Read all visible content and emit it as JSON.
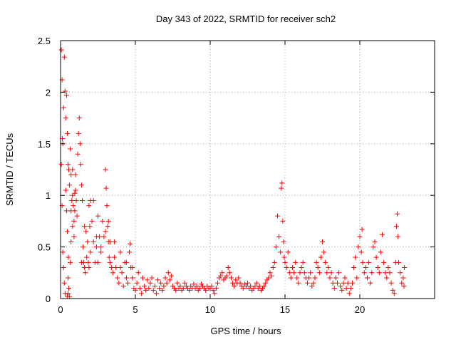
{
  "chart_data": {
    "type": "scatter",
    "title": "Day 343 of 2022, SRMTID for receiver sch2",
    "xlabel": "GPS time / hours",
    "ylabel": "SRMTID / TECUs",
    "xlim": [
      0,
      25
    ],
    "ylim": [
      0,
      2.5
    ],
    "x_ticks": [
      0,
      5,
      10,
      15,
      20
    ],
    "y_ticks": [
      0,
      0.5,
      1,
      1.5,
      2,
      2.5
    ],
    "x_tick_labels": [
      "0",
      "5",
      "10",
      "15",
      "20"
    ],
    "y_tick_labels": [
      "0",
      "0.5",
      "1",
      "1.5",
      "2",
      "2.5"
    ],
    "grid": true,
    "marker": "+",
    "color": "#ff0000",
    "series": [
      {
        "name": "sch2",
        "points": [
          [
            0.05,
            2.41
          ],
          [
            0.1,
            2.12
          ],
          [
            0.12,
            1.55
          ],
          [
            0.15,
            1.5
          ],
          [
            0.2,
            1.85
          ],
          [
            0.25,
            2.34
          ],
          [
            0.3,
            2.01
          ],
          [
            0.35,
            1.75
          ],
          [
            0.4,
            1.97
          ],
          [
            0.45,
            1.6
          ],
          [
            0.5,
            1.3
          ],
          [
            0.55,
            1.25
          ],
          [
            0.6,
            1.1
          ],
          [
            0.65,
            1.45
          ],
          [
            0.7,
            1.2
          ],
          [
            0.75,
            0.95
          ],
          [
            0.8,
            1.0
          ],
          [
            0.85,
            0.9
          ],
          [
            0.9,
            0.75
          ],
          [
            0.95,
            0.85
          ],
          [
            0.05,
            1.3
          ],
          [
            0.1,
            0.9
          ],
          [
            0.15,
            0.45
          ],
          [
            0.2,
            0.3
          ],
          [
            0.25,
            0.15
          ],
          [
            0.3,
            0.05
          ],
          [
            0.35,
            1.05
          ],
          [
            0.4,
            0.85
          ],
          [
            0.45,
            0.65
          ],
          [
            0.5,
            0.2
          ],
          [
            0.55,
            0.1
          ],
          [
            0.6,
            0.02
          ],
          [
            0.65,
            0.35
          ],
          [
            0.7,
            0.55
          ],
          [
            0.8,
            0.7
          ],
          [
            0.9,
            0.6
          ],
          [
            1.0,
            1.2
          ],
          [
            1.05,
            0.95
          ],
          [
            1.1,
            0.8
          ],
          [
            1.15,
            1.4
          ],
          [
            1.2,
            1.6
          ],
          [
            1.25,
            1.75
          ],
          [
            1.3,
            1.5
          ],
          [
            1.35,
            1.3
          ],
          [
            1.4,
            1.1
          ],
          [
            1.45,
            0.95
          ],
          [
            1.5,
            0.5
          ],
          [
            1.55,
            0.35
          ],
          [
            1.6,
            0.3
          ],
          [
            1.65,
            0.25
          ],
          [
            1.7,
            0.65
          ],
          [
            1.75,
            0.4
          ],
          [
            1.8,
            0.55
          ],
          [
            1.85,
            0.35
          ],
          [
            1.9,
            0.3
          ],
          [
            1.95,
            0.7
          ],
          [
            2.0,
            0.95
          ],
          [
            2.1,
            0.75
          ],
          [
            2.2,
            0.55
          ],
          [
            2.3,
            0.35
          ],
          [
            2.4,
            0.5
          ],
          [
            2.5,
            0.8
          ],
          [
            2.6,
            0.6
          ],
          [
            2.7,
            0.45
          ],
          [
            2.8,
            0.75
          ],
          [
            2.9,
            0.6
          ],
          [
            3.0,
            1.25
          ],
          [
            3.05,
            1.07
          ],
          [
            3.1,
            0.9
          ],
          [
            3.15,
            0.7
          ],
          [
            3.2,
            0.55
          ],
          [
            3.25,
            0.4
          ],
          [
            3.3,
            0.35
          ],
          [
            3.4,
            0.3
          ],
          [
            3.5,
            0.25
          ],
          [
            3.6,
            0.4
          ],
          [
            3.7,
            0.3
          ],
          [
            3.8,
            0.2
          ],
          [
            3.9,
            0.15
          ],
          [
            4.0,
            0.3
          ],
          [
            4.1,
            0.25
          ],
          [
            4.2,
            0.12
          ],
          [
            4.3,
            0.35
          ],
          [
            4.4,
            0.2
          ],
          [
            4.5,
            0.15
          ],
          [
            4.6,
            0.45
          ],
          [
            4.65,
            0.53
          ],
          [
            4.7,
            0.3
          ],
          [
            4.8,
            0.2
          ],
          [
            4.9,
            0.1
          ],
          [
            5.0,
            0.08
          ],
          [
            5.1,
            0.15
          ],
          [
            5.2,
            0.25
          ],
          [
            5.3,
            0.1
          ],
          [
            5.4,
            0.05
          ],
          [
            5.5,
            0.2
          ],
          [
            5.6,
            0.12
          ],
          [
            5.7,
            0.08
          ],
          [
            5.8,
            0.18
          ],
          [
            5.9,
            0.1
          ],
          [
            6.0,
            0.15
          ],
          [
            6.1,
            0.2
          ],
          [
            6.2,
            0.08
          ],
          [
            6.3,
            0.12
          ],
          [
            6.4,
            0.05
          ],
          [
            6.5,
            0.18
          ],
          [
            6.6,
            0.1
          ],
          [
            6.7,
            0.15
          ],
          [
            6.8,
            0.08
          ],
          [
            6.9,
            0.12
          ],
          [
            7.0,
            0.2
          ],
          [
            7.1,
            0.15
          ],
          [
            7.2,
            0.25
          ],
          [
            7.3,
            0.18
          ],
          [
            7.4,
            0.22
          ],
          [
            7.5,
            0.12
          ],
          [
            7.6,
            0.1
          ],
          [
            7.7,
            0.08
          ],
          [
            7.8,
            0.15
          ],
          [
            7.9,
            0.1
          ],
          [
            8.0,
            0.12
          ],
          [
            8.1,
            0.08
          ],
          [
            8.2,
            0.1
          ],
          [
            8.3,
            0.15
          ],
          [
            8.4,
            0.12
          ],
          [
            8.5,
            0.1
          ],
          [
            8.6,
            0.08
          ],
          [
            8.7,
            0.12
          ],
          [
            8.8,
            0.1
          ],
          [
            8.9,
            0.14
          ],
          [
            9.0,
            0.1
          ],
          [
            9.1,
            0.12
          ],
          [
            9.2,
            0.08
          ],
          [
            9.3,
            0.1
          ],
          [
            9.4,
            0.14
          ],
          [
            9.5,
            0.12
          ],
          [
            9.6,
            0.1
          ],
          [
            9.7,
            0.08
          ],
          [
            9.8,
            0.12
          ],
          [
            9.9,
            0.1
          ],
          [
            10.0,
            0.1
          ],
          [
            10.1,
            0.12
          ],
          [
            10.2,
            0.08
          ],
          [
            10.3,
            0.05
          ],
          [
            10.4,
            0.1
          ],
          [
            10.5,
            0.15
          ],
          [
            10.6,
            0.2
          ],
          [
            10.7,
            0.22
          ],
          [
            10.8,
            0.25
          ],
          [
            10.9,
            0.18
          ],
          [
            11.0,
            0.2
          ],
          [
            11.1,
            0.22
          ],
          [
            11.2,
            0.3
          ],
          [
            11.3,
            0.25
          ],
          [
            11.4,
            0.2
          ],
          [
            11.5,
            0.15
          ],
          [
            11.6,
            0.12
          ],
          [
            11.7,
            0.18
          ],
          [
            11.8,
            0.15
          ],
          [
            11.9,
            0.2
          ],
          [
            12.0,
            0.15
          ],
          [
            12.1,
            0.12
          ],
          [
            12.2,
            0.1
          ],
          [
            12.3,
            0.14
          ],
          [
            12.4,
            0.12
          ],
          [
            12.5,
            0.15
          ],
          [
            12.6,
            0.1
          ],
          [
            12.7,
            0.12
          ],
          [
            12.8,
            0.08
          ],
          [
            12.9,
            0.1
          ],
          [
            13.0,
            0.12
          ],
          [
            13.1,
            0.15
          ],
          [
            13.2,
            0.1
          ],
          [
            13.3,
            0.12
          ],
          [
            13.4,
            0.08
          ],
          [
            13.5,
            0.1
          ],
          [
            13.6,
            0.12
          ],
          [
            13.7,
            0.15
          ],
          [
            13.8,
            0.18
          ],
          [
            13.9,
            0.2
          ],
          [
            14.0,
            0.25
          ],
          [
            14.1,
            0.22
          ],
          [
            14.2,
            0.3
          ],
          [
            14.3,
            0.35
          ],
          [
            14.4,
            0.5
          ],
          [
            14.5,
            0.8
          ],
          [
            14.6,
            0.6
          ],
          [
            14.7,
            0.45
          ],
          [
            14.75,
            1.07
          ],
          [
            14.8,
            1.12
          ],
          [
            14.85,
            0.75
          ],
          [
            14.9,
            0.55
          ],
          [
            14.95,
            0.4
          ],
          [
            15.0,
            0.35
          ],
          [
            15.1,
            0.3
          ],
          [
            15.2,
            0.45
          ],
          [
            15.3,
            0.25
          ],
          [
            15.4,
            0.2
          ],
          [
            15.5,
            0.3
          ],
          [
            15.6,
            0.25
          ],
          [
            15.7,
            0.35
          ],
          [
            15.8,
            0.2
          ],
          [
            15.9,
            0.15
          ],
          [
            16.0,
            0.25
          ],
          [
            16.1,
            0.3
          ],
          [
            16.2,
            0.35
          ],
          [
            16.3,
            0.25
          ],
          [
            16.4,
            0.2
          ],
          [
            16.5,
            0.15
          ],
          [
            16.6,
            0.2
          ],
          [
            16.7,
            0.25
          ],
          [
            16.8,
            0.12
          ],
          [
            16.9,
            0.15
          ],
          [
            17.0,
            0.2
          ],
          [
            17.1,
            0.35
          ],
          [
            17.2,
            0.3
          ],
          [
            17.3,
            0.25
          ],
          [
            17.4,
            0.4
          ],
          [
            17.5,
            0.55
          ],
          [
            17.6,
            0.45
          ],
          [
            17.7,
            0.35
          ],
          [
            17.8,
            0.25
          ],
          [
            17.9,
            0.3
          ],
          [
            18.0,
            0.2
          ],
          [
            18.1,
            0.25
          ],
          [
            18.2,
            0.15
          ],
          [
            18.3,
            0.1
          ],
          [
            18.4,
            0.2
          ],
          [
            18.5,
            0.15
          ],
          [
            18.6,
            0.25
          ],
          [
            18.7,
            0.12
          ],
          [
            18.8,
            0.08
          ],
          [
            18.9,
            0.15
          ],
          [
            19.0,
            0.2
          ],
          [
            19.1,
            0.1
          ],
          [
            19.2,
            0.15
          ],
          [
            19.3,
            0.05
          ],
          [
            19.4,
            0.1
          ],
          [
            19.5,
            0.15
          ],
          [
            19.6,
            0.3
          ],
          [
            19.7,
            0.4
          ],
          [
            19.8,
            0.2
          ],
          [
            19.9,
            0.5
          ],
          [
            20.0,
            0.6
          ],
          [
            20.1,
            0.45
          ],
          [
            20.15,
            0.67
          ],
          [
            20.2,
            0.35
          ],
          [
            20.3,
            0.25
          ],
          [
            20.4,
            0.3
          ],
          [
            20.5,
            0.2
          ],
          [
            20.6,
            0.35
          ],
          [
            20.7,
            0.15
          ],
          [
            20.8,
            0.25
          ],
          [
            20.9,
            0.5
          ],
          [
            21.0,
            0.55
          ],
          [
            21.1,
            0.4
          ],
          [
            21.2,
            0.3
          ],
          [
            21.3,
            0.25
          ],
          [
            21.4,
            0.45
          ],
          [
            21.5,
            0.62
          ],
          [
            21.6,
            0.35
          ],
          [
            21.7,
            0.25
          ],
          [
            21.8,
            0.2
          ],
          [
            21.9,
            0.3
          ],
          [
            22.0,
            0.25
          ],
          [
            22.1,
            0.15
          ],
          [
            22.2,
            0.08
          ],
          [
            22.3,
            0.05
          ],
          [
            22.4,
            0.35
          ],
          [
            22.45,
            0.7
          ],
          [
            22.5,
            0.82
          ],
          [
            22.55,
            0.6
          ],
          [
            22.6,
            0.35
          ],
          [
            22.7,
            0.25
          ],
          [
            22.8,
            0.15
          ],
          [
            22.9,
            0.2
          ],
          [
            22.95,
            0.12
          ],
          [
            22.98,
            0.3
          ],
          [
            0.95,
            1.02
          ],
          [
            1.0,
            1.05
          ],
          [
            1.4,
            0.35
          ],
          [
            1.6,
            0.7
          ],
          [
            2.0,
            0.45
          ],
          [
            2.4,
            0.6
          ],
          [
            3.0,
            0.65
          ],
          [
            3.2,
            0.75
          ],
          [
            3.6,
            0.55
          ],
          [
            4.0,
            0.45
          ],
          [
            4.4,
            0.35
          ],
          [
            4.8,
            0.3
          ],
          [
            0.45,
            0.02
          ],
          [
            0.5,
            0.05
          ],
          [
            0.52,
            0.4
          ],
          [
            0.7,
            0.85
          ],
          [
            0.8,
            1.25
          ],
          [
            1.9,
            0.9
          ],
          [
            2.2,
            0.95
          ],
          [
            2.5,
            0.35
          ],
          [
            2.7,
            0.5
          ],
          [
            3.3,
            0.55
          ]
        ]
      }
    ]
  }
}
